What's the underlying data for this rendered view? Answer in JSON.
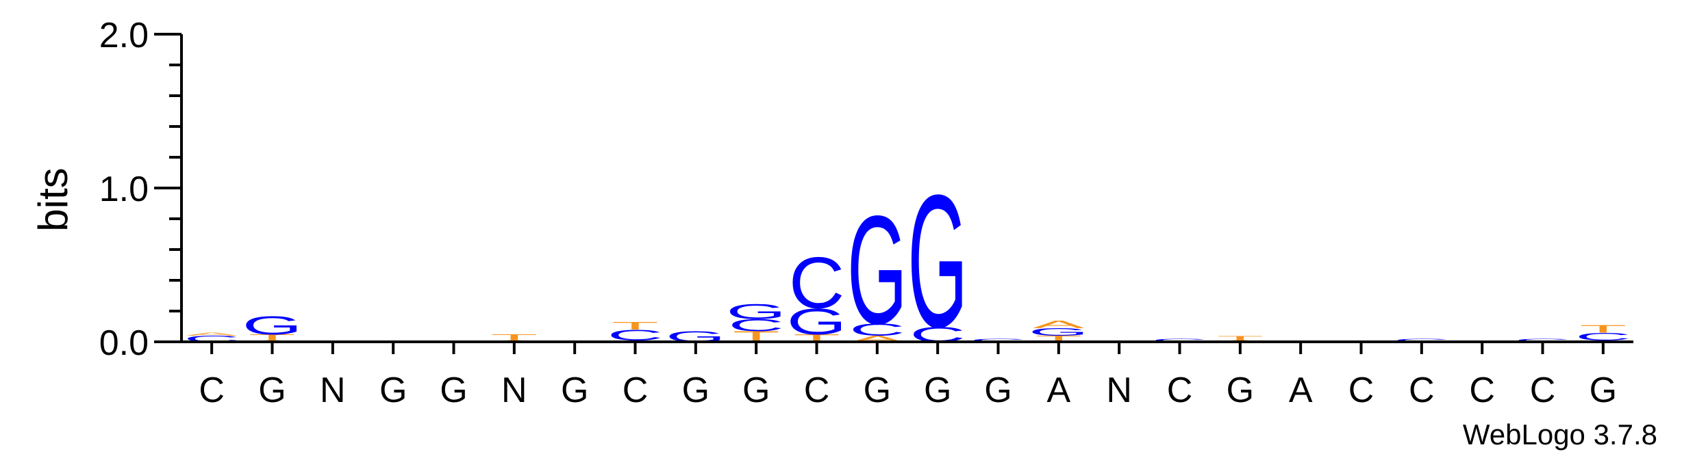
{
  "chart_data": {
    "type": "sequence-logo",
    "ylabel": "bits",
    "ylim": [
      0,
      2.0
    ],
    "yticks": [
      "0.0",
      "1.0",
      "2.0"
    ],
    "consensus": [
      "C",
      "G",
      "N",
      "G",
      "G",
      "N",
      "G",
      "C",
      "G",
      "G",
      "C",
      "G",
      "G",
      "G",
      "A",
      "N",
      "C",
      "G",
      "A",
      "C",
      "C",
      "C",
      "C",
      "G"
    ],
    "colors": {
      "A": "#f7941d",
      "C": "#0000ff",
      "G": "#0000ff",
      "T": "#f7941d"
    },
    "stacks": [
      [
        {
          "b": "C",
          "h": 0.04
        },
        {
          "b": "A",
          "h": 0.02
        }
      ],
      [
        {
          "b": "A",
          "h": 0.01
        },
        {
          "b": "T",
          "h": 0.04
        },
        {
          "b": "G",
          "h": 0.12
        }
      ],
      [],
      [],
      [],
      [
        {
          "b": "A",
          "h": 0.01
        },
        {
          "b": "T",
          "h": 0.04
        }
      ],
      [],
      [
        {
          "b": "A",
          "h": 0.01
        },
        {
          "b": "C",
          "h": 0.07
        },
        {
          "b": "T",
          "h": 0.05
        }
      ],
      [
        {
          "b": "G",
          "h": 0.07
        }
      ],
      [
        {
          "b": "T",
          "h": 0.07
        },
        {
          "b": "C",
          "h": 0.08
        },
        {
          "b": "G",
          "h": 0.1
        }
      ],
      [
        {
          "b": "T",
          "h": 0.05
        },
        {
          "b": "G",
          "h": 0.17
        },
        {
          "b": "C",
          "h": 0.34
        }
      ],
      [
        {
          "b": "A",
          "h": 0.04
        },
        {
          "b": "C",
          "h": 0.08
        },
        {
          "b": "G",
          "h": 0.72
        }
      ],
      [
        {
          "b": "C",
          "h": 0.1
        },
        {
          "b": "G",
          "h": 0.88
        }
      ],
      [
        {
          "b": "C",
          "h": 0.02
        }
      ],
      [
        {
          "b": "T",
          "h": 0.04
        },
        {
          "b": "G",
          "h": 0.05
        },
        {
          "b": "A",
          "h": 0.05
        }
      ],
      [],
      [
        {
          "b": "C",
          "h": 0.02
        }
      ],
      [
        {
          "b": "A",
          "h": 0.01
        },
        {
          "b": "T",
          "h": 0.03
        }
      ],
      [],
      [],
      [
        {
          "b": "C",
          "h": 0.02
        }
      ],
      [],
      [
        {
          "b": "C",
          "h": 0.02
        }
      ],
      [
        {
          "b": "A",
          "h": 0.01
        },
        {
          "b": "C",
          "h": 0.05
        },
        {
          "b": "T",
          "h": 0.05
        }
      ]
    ]
  },
  "credit": "WebLogo 3.7.8"
}
